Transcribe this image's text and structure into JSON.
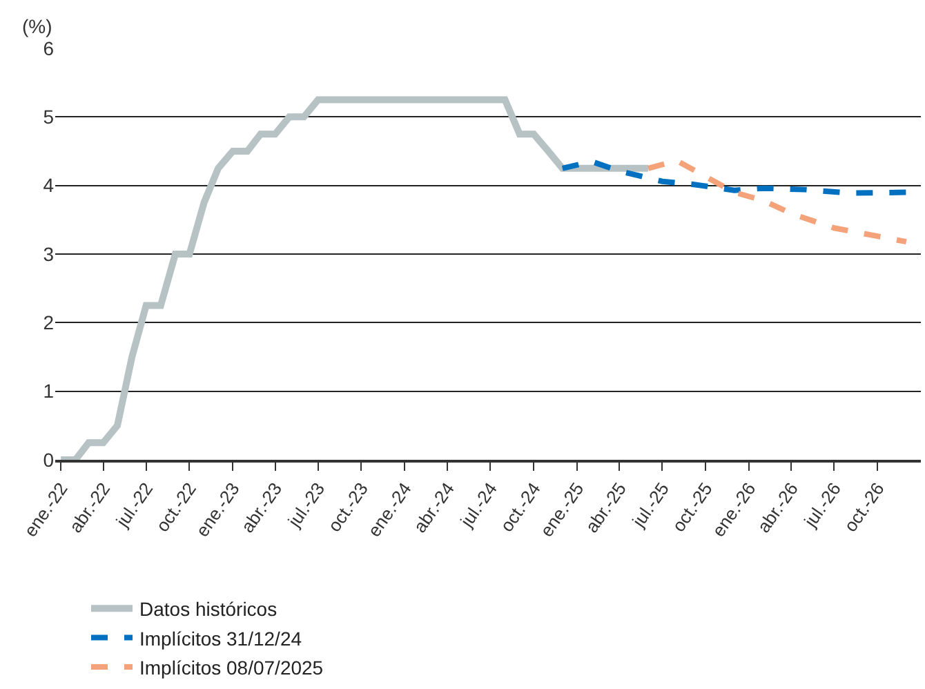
{
  "chart_data": {
    "type": "line",
    "ylabel": "(%)",
    "xlim": [
      "2021-12-20",
      "2027-01-01"
    ],
    "ylim": [
      0,
      6
    ],
    "yticks": [
      0,
      1,
      2,
      3,
      4,
      5,
      6
    ],
    "xticks": [
      {
        "value": "2022-01-01",
        "label": "ene.-22"
      },
      {
        "value": "2022-04-01",
        "label": "abr.-22"
      },
      {
        "value": "2022-07-01",
        "label": "jul.-22"
      },
      {
        "value": "2022-10-01",
        "label": "oct.-22"
      },
      {
        "value": "2023-01-01",
        "label": "ene.-23"
      },
      {
        "value": "2023-04-01",
        "label": "abr.-23"
      },
      {
        "value": "2023-07-01",
        "label": "jul.-23"
      },
      {
        "value": "2023-10-01",
        "label": "oct.-23"
      },
      {
        "value": "2024-01-01",
        "label": "ene.-24"
      },
      {
        "value": "2024-04-01",
        "label": "abr.-24"
      },
      {
        "value": "2024-07-01",
        "label": "jul.-24"
      },
      {
        "value": "2024-10-01",
        "label": "oct.-24"
      },
      {
        "value": "2025-01-01",
        "label": "ene.-25"
      },
      {
        "value": "2025-04-01",
        "label": "abr.-25"
      },
      {
        "value": "2025-07-01",
        "label": "jul.-25"
      },
      {
        "value": "2025-10-01",
        "label": "oct.-25"
      },
      {
        "value": "2026-01-01",
        "label": "ene.-26"
      },
      {
        "value": "2026-04-01",
        "label": "abr.-26"
      },
      {
        "value": "2026-07-01",
        "label": "jul.-26"
      },
      {
        "value": "2026-10-01",
        "label": "oct.-26"
      }
    ],
    "grid": "y",
    "legend": "bottom",
    "marker": "none",
    "series": [
      {
        "name": "Datos históricos",
        "color": "#b7c2c4",
        "line_style": "solid",
        "x": [
          "2022-01-01",
          "2022-02-01",
          "2022-03-01",
          "2022-04-01",
          "2022-05-01",
          "2022-06-01",
          "2022-07-01",
          "2022-08-01",
          "2022-09-01",
          "2022-10-01",
          "2022-11-01",
          "2022-12-01",
          "2023-01-01",
          "2023-02-01",
          "2023-03-01",
          "2023-04-01",
          "2023-05-01",
          "2023-06-01",
          "2023-07-01",
          "2023-08-01",
          "2024-08-01",
          "2024-09-01",
          "2024-10-01",
          "2024-11-01",
          "2024-12-01",
          "2025-06-01"
        ],
        "values": [
          0,
          0,
          0.25,
          0.25,
          0.5,
          1.5,
          2.25,
          2.25,
          3,
          3,
          3.75,
          4.25,
          4.5,
          4.5,
          4.75,
          4.75,
          5,
          5,
          5.25,
          5.25,
          5.25,
          4.75,
          4.75,
          4.5,
          4.25,
          4.25
        ]
      },
      {
        "name": "Implícitos 31/12/24",
        "color": "#0070c0",
        "line_style": "dashed",
        "x": [
          "2024-12-01",
          "2025-02-01",
          "2025-04-01",
          "2025-07-01",
          "2025-09-01",
          "2025-12-01",
          "2026-02-01",
          "2026-05-01",
          "2026-08-01",
          "2026-12-01"
        ],
        "values": [
          4.25,
          4.35,
          4.21,
          4.06,
          4.02,
          3.93,
          3.96,
          3.94,
          3.89,
          3.9
        ]
      },
      {
        "name": "Implícitos 08/07/2025",
        "color": "#f4a27a",
        "line_style": "dashed",
        "x": [
          "2025-06-01",
          "2025-08-01",
          "2025-10-01",
          "2025-12-01",
          "2026-02-01",
          "2026-04-01",
          "2026-07-01",
          "2026-10-01",
          "2026-12-01"
        ],
        "values": [
          4.25,
          4.36,
          4.13,
          3.9,
          3.78,
          3.59,
          3.38,
          3.26,
          3.18
        ]
      }
    ]
  }
}
